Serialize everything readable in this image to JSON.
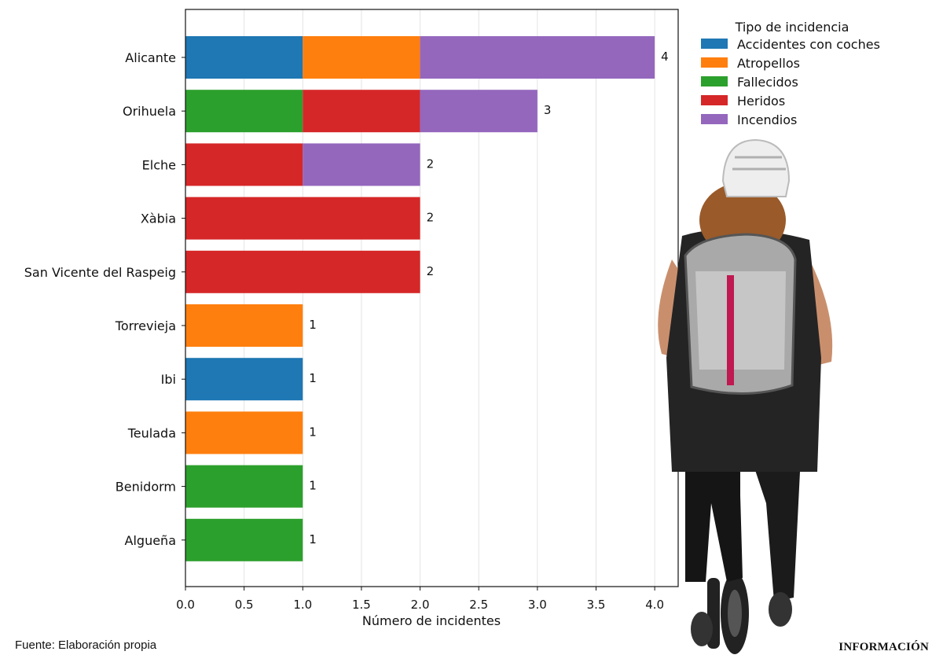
{
  "chart_data": {
    "type": "bar",
    "orientation": "horizontal",
    "stacked": true,
    "categories": [
      "Alicante",
      "Orihuela",
      "Elche",
      "Xàbia",
      "San Vicente del Raspeig",
      "Torrevieja",
      "Ibi",
      "Teulada",
      "Benidorm",
      "Algueña"
    ],
    "series": [
      {
        "name": "Accidentes con coches",
        "color": "#1f77b4",
        "values": [
          1,
          0,
          0,
          0,
          0,
          0,
          1,
          0,
          0,
          0
        ]
      },
      {
        "name": "Atropellos",
        "color": "#ff7f0e",
        "values": [
          1,
          0,
          0,
          0,
          0,
          1,
          0,
          1,
          0,
          0
        ]
      },
      {
        "name": "Fallecidos",
        "color": "#2ca02c",
        "values": [
          0,
          1,
          0,
          0,
          0,
          0,
          0,
          0,
          1,
          1
        ]
      },
      {
        "name": "Heridos",
        "color": "#d62728",
        "values": [
          0,
          1,
          1,
          2,
          2,
          0,
          0,
          0,
          0,
          0
        ]
      },
      {
        "name": "Incendios",
        "color": "#9467bd",
        "values": [
          2,
          1,
          1,
          0,
          0,
          0,
          0,
          0,
          0,
          0
        ]
      }
    ],
    "totals": [
      4,
      3,
      2,
      2,
      2,
      1,
      1,
      1,
      1,
      1
    ],
    "xticks": [
      "0.0",
      "0.5",
      "1.0",
      "1.5",
      "2.0",
      "2.5",
      "3.0",
      "3.5",
      "4.0"
    ],
    "xlim": [
      0,
      4.2
    ],
    "xlabel": "Número de incidentes",
    "ylabel": "",
    "title": "",
    "legend_title": "Tipo de incidencia",
    "legend_position": "top-right",
    "grid": "vertical"
  },
  "footer": {
    "source": "Fuente: Elaboración propia",
    "brand": "INFORMACIÓN"
  },
  "photo": {
    "subject": "person-on-electric-scooter"
  }
}
